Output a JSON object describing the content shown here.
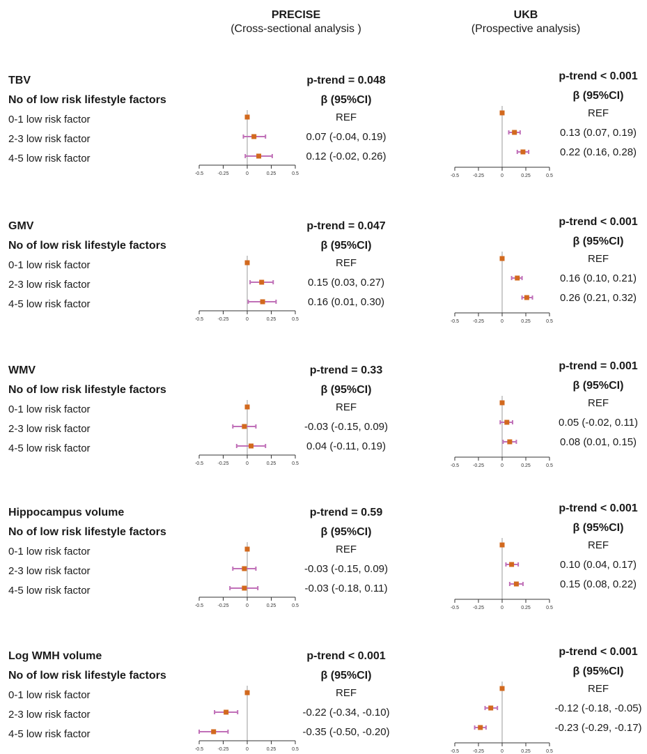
{
  "header": {
    "precise": {
      "title": "PRECISE",
      "subtitle": "(Cross-sectional analysis )"
    },
    "ukb": {
      "title": "UKB",
      "subtitle": "(Prospective analysis)"
    }
  },
  "row_labels": [
    "0-1 low risk factor",
    "2-3 low risk factor",
    "4-5 low risk factor"
  ],
  "group_label": "No of low risk lifestyle factors",
  "col_header": "β (95%CI)",
  "colors": {
    "marker": "#d2691e",
    "ci": "#c070b8",
    "refline": "#bbbbbb",
    "axis": "#333333"
  },
  "chart_data": [
    {
      "type": "forest",
      "outcome": "TBV",
      "xlim": [
        -0.5,
        0.5
      ],
      "ticks": [
        "-0.5",
        "-0.25",
        "0",
        "0.25",
        "0.5"
      ],
      "precise": {
        "ptrend": "p-trend = 0.048",
        "rows": [
          {
            "est": 0,
            "lo": 0,
            "hi": 0,
            "text": "REF"
          },
          {
            "est": 0.07,
            "lo": -0.04,
            "hi": 0.19,
            "text": "0.07 (-0.04, 0.19)"
          },
          {
            "est": 0.12,
            "lo": -0.02,
            "hi": 0.26,
            "text": "0.12 (-0.02, 0.26)"
          }
        ]
      },
      "ukb": {
        "ptrend": "p-trend < 0.001",
        "rows": [
          {
            "est": 0,
            "lo": 0,
            "hi": 0,
            "text": "REF"
          },
          {
            "est": 0.13,
            "lo": 0.07,
            "hi": 0.19,
            "text": "0.13 (0.07, 0.19)"
          },
          {
            "est": 0.22,
            "lo": 0.16,
            "hi": 0.28,
            "text": "0.22 (0.16, 0.28)"
          }
        ]
      }
    },
    {
      "type": "forest",
      "outcome": "GMV",
      "xlim": [
        -0.5,
        0.5
      ],
      "ticks": [
        "-0.5",
        "-0.25",
        "0",
        "0.25",
        "0.5"
      ],
      "precise": {
        "ptrend": "p-trend = 0.047",
        "rows": [
          {
            "est": 0,
            "lo": 0,
            "hi": 0,
            "text": "REF"
          },
          {
            "est": 0.15,
            "lo": 0.03,
            "hi": 0.27,
            "text": "0.15 (0.03, 0.27)"
          },
          {
            "est": 0.16,
            "lo": 0.01,
            "hi": 0.3,
            "text": "0.16 (0.01, 0.30)"
          }
        ]
      },
      "ukb": {
        "ptrend": "p-trend < 0.001",
        "rows": [
          {
            "est": 0,
            "lo": 0,
            "hi": 0,
            "text": "REF"
          },
          {
            "est": 0.16,
            "lo": 0.1,
            "hi": 0.21,
            "text": "0.16 (0.10, 0.21)"
          },
          {
            "est": 0.26,
            "lo": 0.21,
            "hi": 0.32,
            "text": "0.26 (0.21, 0.32)"
          }
        ]
      }
    },
    {
      "type": "forest",
      "outcome": "WMV",
      "xlim": [
        -0.5,
        0.5
      ],
      "ticks": [
        "-0.5",
        "-0.25",
        "0",
        "0.25",
        "0.5"
      ],
      "precise": {
        "ptrend": "p-trend = 0.33",
        "rows": [
          {
            "est": 0,
            "lo": 0,
            "hi": 0,
            "text": "REF"
          },
          {
            "est": -0.03,
            "lo": -0.15,
            "hi": 0.09,
            "text": "-0.03 (-0.15, 0.09)"
          },
          {
            "est": 0.04,
            "lo": -0.11,
            "hi": 0.19,
            "text": "0.04 (-0.11, 0.19)"
          }
        ]
      },
      "ukb": {
        "ptrend": "p-trend = 0.001",
        "rows": [
          {
            "est": 0,
            "lo": 0,
            "hi": 0,
            "text": "REF"
          },
          {
            "est": 0.05,
            "lo": -0.02,
            "hi": 0.11,
            "text": "0.05 (-0.02, 0.11)"
          },
          {
            "est": 0.08,
            "lo": 0.01,
            "hi": 0.15,
            "text": "0.08 (0.01, 0.15)"
          }
        ]
      }
    },
    {
      "type": "forest",
      "outcome": "Hippocampus volume",
      "xlim": [
        -0.5,
        0.5
      ],
      "ticks": [
        "-0.5",
        "-0.25",
        "0",
        "0.25",
        "0.5"
      ],
      "precise": {
        "ptrend": "p-trend = 0.59",
        "rows": [
          {
            "est": 0,
            "lo": 0,
            "hi": 0,
            "text": "REF"
          },
          {
            "est": -0.03,
            "lo": -0.15,
            "hi": 0.09,
            "text": "-0.03 (-0.15, 0.09)"
          },
          {
            "est": -0.03,
            "lo": -0.18,
            "hi": 0.11,
            "text": "-0.03 (-0.18, 0.11)"
          }
        ]
      },
      "ukb": {
        "ptrend": "p-trend < 0.001",
        "rows": [
          {
            "est": 0,
            "lo": 0,
            "hi": 0,
            "text": "REF"
          },
          {
            "est": 0.1,
            "lo": 0.04,
            "hi": 0.17,
            "text": "0.10 (0.04, 0.17)"
          },
          {
            "est": 0.15,
            "lo": 0.08,
            "hi": 0.22,
            "text": "0.15 (0.08, 0.22)"
          }
        ]
      }
    },
    {
      "type": "forest",
      "outcome": "Log WMH volume",
      "xlim": [
        -0.5,
        0.5
      ],
      "ticks": [
        "-0.5",
        "-0.25",
        "0",
        "0.25",
        "0.5"
      ],
      "precise": {
        "ptrend": "p-trend < 0.001",
        "rows": [
          {
            "est": 0,
            "lo": 0,
            "hi": 0,
            "text": "REF"
          },
          {
            "est": -0.22,
            "lo": -0.34,
            "hi": -0.1,
            "text": "-0.22 (-0.34, -0.10)"
          },
          {
            "est": -0.35,
            "lo": -0.5,
            "hi": -0.2,
            "text": "-0.35 (-0.50, -0.20)"
          }
        ]
      },
      "ukb": {
        "ptrend": "p-trend < 0.001",
        "rows": [
          {
            "est": 0,
            "lo": 0,
            "hi": 0,
            "text": "REF"
          },
          {
            "est": -0.12,
            "lo": -0.18,
            "hi": -0.05,
            "text": "-0.12 (-0.18, -0.05)"
          },
          {
            "est": -0.23,
            "lo": -0.29,
            "hi": -0.17,
            "text": "-0.23 (-0.29, -0.17)"
          }
        ]
      }
    }
  ]
}
